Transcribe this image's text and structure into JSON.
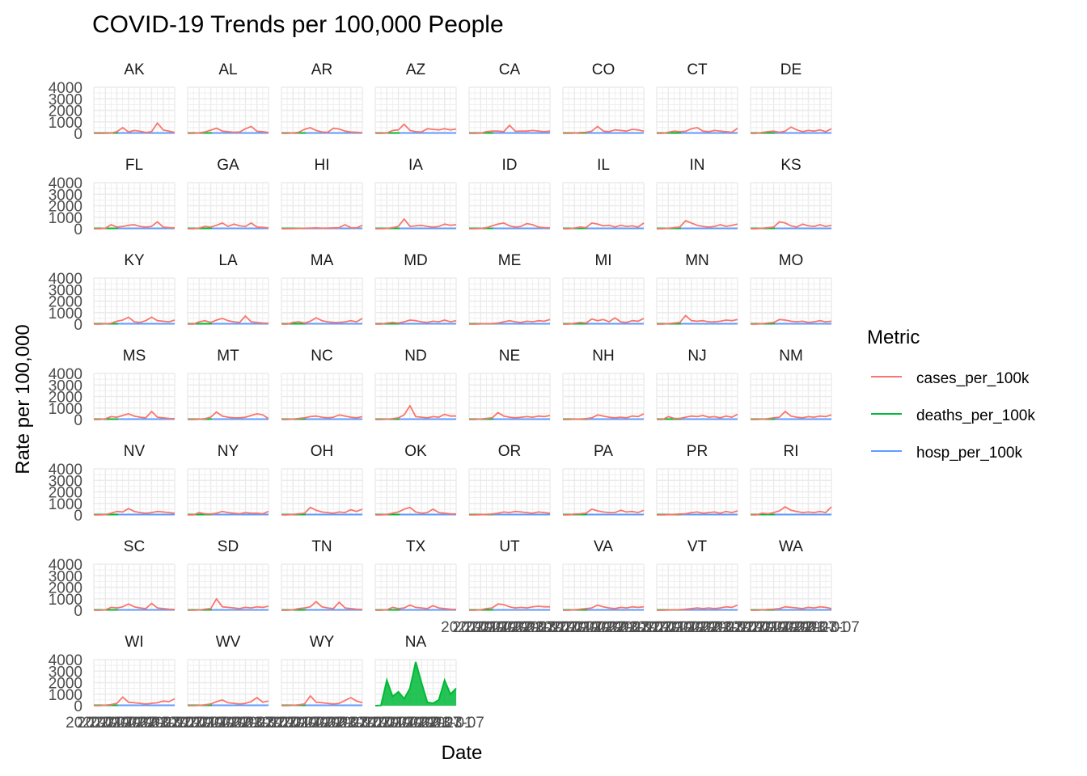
{
  "chart_data": {
    "type": "line",
    "title": "COVID-19 Trends per 100,000 People",
    "xlabel": "Date",
    "ylabel": "Rate per 100,000",
    "ylim": [
      0,
      4000
    ],
    "y_ticks": [
      "0",
      "1000",
      "2000",
      "3000",
      "4000"
    ],
    "x_tick_labels": [
      "2020-01",
      "2020-07",
      "2021-01",
      "2021-07",
      "2022-01",
      "2022-07",
      "2023-01",
      "2023-07"
    ],
    "x_range": [
      "2020-01",
      "2023-07"
    ],
    "grid": true,
    "legend": {
      "title": "Metric",
      "position": "right",
      "entries": [
        "cases_per_100k",
        "deaths_per_100k",
        "hosp_per_100k"
      ]
    },
    "colors": {
      "cases_per_100k": "#F8766D",
      "deaths_per_100k": "#00BA38",
      "hosp_per_100k": "#619CFF"
    },
    "facet_dates": [
      "2020-01",
      "2020-04",
      "2020-07",
      "2020-10",
      "2021-01",
      "2021-04",
      "2021-07",
      "2021-10",
      "2022-01",
      "2022-04",
      "2022-07",
      "2022-10",
      "2023-01",
      "2023-04",
      "2023-07"
    ],
    "facets": [
      {
        "name": "AK",
        "cases": [
          0,
          0,
          10,
          30,
          150,
          500,
          120,
          250,
          180,
          80,
          150,
          900,
          300,
          200,
          80
        ]
      },
      {
        "name": "AL",
        "cases": [
          0,
          0,
          50,
          120,
          280,
          450,
          200,
          150,
          100,
          120,
          400,
          600,
          180,
          150,
          80
        ]
      },
      {
        "name": "AR",
        "cases": [
          0,
          0,
          40,
          100,
          350,
          500,
          250,
          120,
          100,
          450,
          380,
          200,
          120,
          100,
          60
        ]
      },
      {
        "name": "AZ",
        "cases": [
          0,
          0,
          30,
          250,
          300,
          800,
          250,
          150,
          120,
          400,
          350,
          300,
          400,
          300,
          380
        ]
      },
      {
        "name": "CA",
        "cases": [
          0,
          0,
          20,
          150,
          200,
          200,
          150,
          700,
          180,
          200,
          200,
          250,
          200,
          150,
          200
        ]
      },
      {
        "name": "CO",
        "cases": [
          0,
          0,
          20,
          80,
          100,
          200,
          600,
          200,
          150,
          300,
          250,
          200,
          350,
          300,
          200
        ]
      },
      {
        "name": "CT",
        "cases": [
          0,
          0,
          100,
          200,
          150,
          180,
          400,
          500,
          200,
          150,
          250,
          200,
          150,
          100,
          450
        ]
      },
      {
        "name": "DE",
        "cases": [
          0,
          0,
          80,
          150,
          200,
          100,
          200,
          550,
          300,
          150,
          250,
          200,
          300,
          150,
          400
        ]
      },
      {
        "name": "FL",
        "cases": [
          0,
          0,
          50,
          350,
          150,
          200,
          300,
          350,
          200,
          150,
          200,
          600,
          150,
          100,
          80
        ]
      },
      {
        "name": "GA",
        "cases": [
          0,
          0,
          60,
          200,
          150,
          300,
          500,
          200,
          400,
          250,
          200,
          500,
          150,
          120,
          80
        ]
      },
      {
        "name": "HI",
        "cases": [
          0,
          0,
          10,
          30,
          40,
          60,
          80,
          50,
          60,
          80,
          100,
          350,
          100,
          80,
          300
        ]
      },
      {
        "name": "IA",
        "cases": [
          0,
          0,
          30,
          100,
          200,
          850,
          200,
          250,
          300,
          200,
          150,
          200,
          400,
          300,
          350
        ]
      },
      {
        "name": "ID",
        "cases": [
          0,
          0,
          30,
          100,
          250,
          400,
          500,
          250,
          150,
          200,
          450,
          350,
          150,
          100,
          80
        ]
      },
      {
        "name": "IL",
        "cases": [
          0,
          0,
          60,
          150,
          100,
          500,
          400,
          250,
          300,
          150,
          300,
          200,
          250,
          150,
          500
        ]
      },
      {
        "name": "IN",
        "cases": [
          0,
          0,
          40,
          100,
          150,
          700,
          500,
          300,
          200,
          150,
          200,
          350,
          200,
          300,
          400
        ]
      },
      {
        "name": "KS",
        "cases": [
          0,
          0,
          40,
          100,
          150,
          600,
          500,
          250,
          150,
          400,
          250,
          200,
          350,
          200,
          300
        ]
      },
      {
        "name": "KY",
        "cases": [
          0,
          0,
          30,
          80,
          250,
          350,
          600,
          200,
          150,
          300,
          600,
          300,
          250,
          200,
          350
        ]
      },
      {
        "name": "LA",
        "cases": [
          0,
          0,
          200,
          300,
          150,
          350,
          500,
          300,
          200,
          150,
          700,
          200,
          150,
          100,
          80
        ]
      },
      {
        "name": "MA",
        "cases": [
          0,
          0,
          150,
          200,
          100,
          250,
          550,
          300,
          200,
          150,
          150,
          200,
          300,
          200,
          500
        ]
      },
      {
        "name": "MD",
        "cases": [
          0,
          0,
          100,
          150,
          100,
          200,
          350,
          300,
          200,
          150,
          250,
          200,
          350,
          200,
          300
        ]
      },
      {
        "name": "ME",
        "cases": [
          0,
          0,
          20,
          40,
          50,
          100,
          200,
          300,
          200,
          150,
          250,
          200,
          300,
          250,
          400
        ]
      },
      {
        "name": "MI",
        "cases": [
          0,
          0,
          80,
          150,
          100,
          450,
          300,
          400,
          200,
          550,
          200,
          150,
          300,
          250,
          500
        ]
      },
      {
        "name": "MN",
        "cases": [
          0,
          0,
          40,
          100,
          150,
          750,
          300,
          250,
          300,
          200,
          200,
          250,
          350,
          300,
          400
        ]
      },
      {
        "name": "MO",
        "cases": [
          0,
          0,
          40,
          100,
          150,
          400,
          350,
          250,
          200,
          250,
          150,
          200,
          300,
          200,
          250
        ]
      },
      {
        "name": "MS",
        "cases": [
          0,
          0,
          60,
          250,
          200,
          350,
          500,
          300,
          200,
          150,
          700,
          200,
          150,
          100,
          80
        ]
      },
      {
        "name": "MT",
        "cases": [
          0,
          0,
          20,
          80,
          200,
          650,
          300,
          200,
          150,
          150,
          200,
          350,
          500,
          400,
          80
        ]
      },
      {
        "name": "NC",
        "cases": [
          0,
          0,
          40,
          100,
          150,
          250,
          300,
          200,
          150,
          200,
          400,
          300,
          200,
          150,
          250
        ]
      },
      {
        "name": "ND",
        "cases": [
          0,
          0,
          30,
          80,
          150,
          400,
          1200,
          250,
          200,
          150,
          250,
          200,
          450,
          300,
          300
        ]
      },
      {
        "name": "NE",
        "cases": [
          0,
          0,
          40,
          100,
          150,
          600,
          300,
          200,
          150,
          200,
          250,
          200,
          300,
          250,
          350
        ]
      },
      {
        "name": "NH",
        "cases": [
          0,
          0,
          30,
          50,
          80,
          150,
          400,
          300,
          200,
          150,
          200,
          150,
          300,
          250,
          500
        ]
      },
      {
        "name": "NJ",
        "cases": [
          0,
          0,
          250,
          100,
          100,
          200,
          300,
          250,
          350,
          200,
          250,
          150,
          300,
          200,
          450
        ]
      },
      {
        "name": "NM",
        "cases": [
          0,
          0,
          30,
          80,
          150,
          200,
          700,
          300,
          200,
          150,
          250,
          200,
          300,
          250,
          400
        ]
      },
      {
        "name": "NV",
        "cases": [
          0,
          0,
          30,
          150,
          300,
          250,
          550,
          300,
          200,
          150,
          200,
          300,
          250,
          200,
          150
        ]
      },
      {
        "name": "NY",
        "cases": [
          0,
          0,
          200,
          100,
          80,
          150,
          300,
          200,
          150,
          100,
          200,
          150,
          150,
          100,
          300
        ]
      },
      {
        "name": "OH",
        "cases": [
          0,
          0,
          40,
          100,
          150,
          650,
          400,
          250,
          200,
          150,
          250,
          200,
          450,
          300,
          500
        ]
      },
      {
        "name": "OK",
        "cases": [
          0,
          0,
          40,
          150,
          250,
          500,
          650,
          250,
          150,
          200,
          500,
          200,
          150,
          100,
          80
        ]
      },
      {
        "name": "OR",
        "cases": [
          0,
          0,
          20,
          50,
          80,
          150,
          250,
          200,
          300,
          250,
          200,
          150,
          250,
          200,
          150
        ]
      },
      {
        "name": "PA",
        "cases": [
          0,
          0,
          80,
          100,
          150,
          500,
          350,
          250,
          200,
          200,
          400,
          250,
          300,
          200,
          400
        ]
      },
      {
        "name": "PR",
        "cases": [
          0,
          0,
          20,
          50,
          80,
          100,
          200,
          250,
          150,
          200,
          250,
          150,
          300,
          200,
          350
        ]
      },
      {
        "name": "RI",
        "cases": [
          0,
          0,
          150,
          100,
          200,
          350,
          700,
          400,
          300,
          200,
          250,
          200,
          300,
          200,
          700
        ]
      },
      {
        "name": "SC",
        "cases": [
          0,
          0,
          40,
          250,
          200,
          300,
          550,
          300,
          200,
          150,
          600,
          200,
          150,
          100,
          80
        ]
      },
      {
        "name": "SD",
        "cases": [
          0,
          0,
          30,
          100,
          150,
          1000,
          300,
          250,
          200,
          150,
          250,
          200,
          300,
          250,
          350
        ]
      },
      {
        "name": "TN",
        "cases": [
          0,
          0,
          40,
          150,
          200,
          300,
          750,
          300,
          200,
          150,
          700,
          200,
          150,
          100,
          80
        ]
      },
      {
        "name": "TX",
        "cases": [
          0,
          0,
          40,
          250,
          150,
          200,
          450,
          250,
          200,
          150,
          400,
          200,
          150,
          100,
          80
        ]
      },
      {
        "name": "UT",
        "cases": [
          0,
          0,
          40,
          150,
          200,
          550,
          500,
          300,
          200,
          250,
          200,
          300,
          350,
          300,
          300
        ]
      },
      {
        "name": "VA",
        "cases": [
          0,
          0,
          40,
          100,
          150,
          200,
          450,
          300,
          200,
          150,
          250,
          200,
          300,
          250,
          300
        ]
      },
      {
        "name": "VT",
        "cases": [
          0,
          0,
          20,
          40,
          50,
          100,
          150,
          200,
          150,
          200,
          150,
          200,
          300,
          250,
          450
        ]
      },
      {
        "name": "WA",
        "cases": [
          0,
          0,
          30,
          80,
          100,
          150,
          300,
          250,
          200,
          150,
          250,
          200,
          300,
          250,
          150
        ]
      },
      {
        "name": "WI",
        "cases": [
          0,
          0,
          40,
          100,
          200,
          750,
          300,
          250,
          200,
          150,
          200,
          250,
          400,
          350,
          600
        ]
      },
      {
        "name": "WV",
        "cases": [
          0,
          0,
          30,
          80,
          150,
          350,
          500,
          250,
          200,
          150,
          200,
          350,
          700,
          300,
          400
        ]
      },
      {
        "name": "WY",
        "cases": [
          0,
          0,
          30,
          80,
          150,
          850,
          300,
          250,
          200,
          150,
          200,
          450,
          700,
          400,
          250
        ]
      },
      {
        "name": "NA",
        "deaths": [
          0,
          30,
          2200,
          800,
          1200,
          600,
          1500,
          3800,
          2000,
          300,
          200,
          500,
          2200,
          1000,
          1500
        ]
      }
    ]
  }
}
